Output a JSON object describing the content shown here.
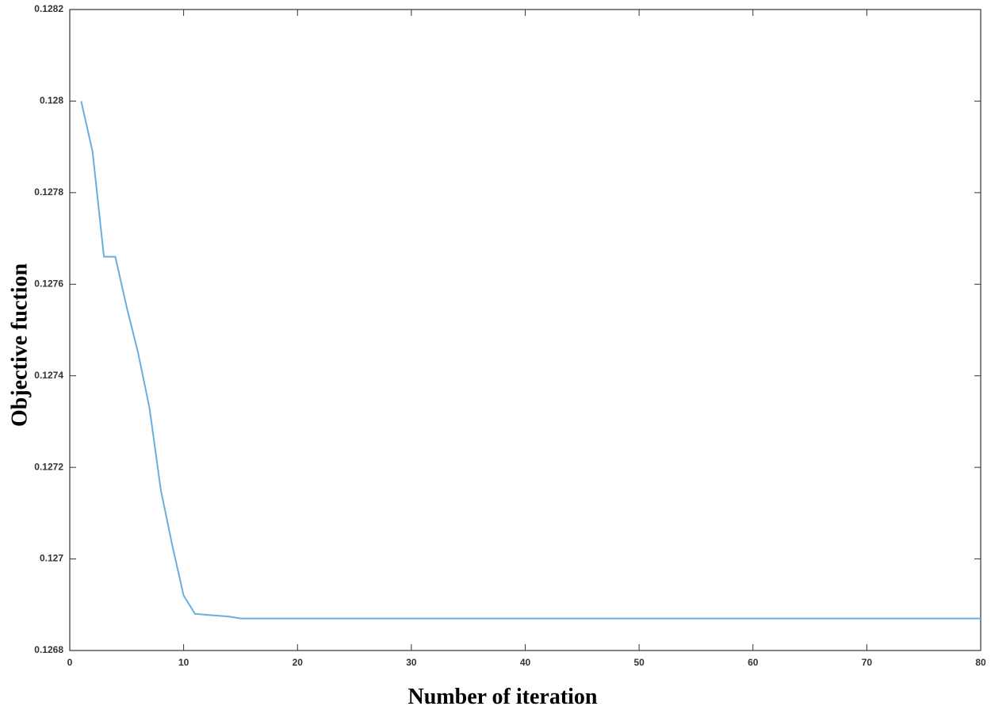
{
  "chart_data": {
    "type": "line",
    "xlabel": "Number of iteration",
    "ylabel": "Objective fuction",
    "x": [
      1,
      2,
      3,
      4,
      5,
      6,
      7,
      8,
      9,
      10,
      11,
      12,
      13,
      14,
      15,
      16,
      17,
      18,
      19,
      20,
      21,
      22,
      23,
      24,
      25,
      26,
      27,
      28,
      29,
      30,
      31,
      32,
      33,
      34,
      35,
      36,
      37,
      38,
      39,
      40,
      41,
      42,
      43,
      44,
      45,
      46,
      47,
      48,
      49,
      50,
      51,
      52,
      53,
      54,
      55,
      56,
      57,
      58,
      59,
      60,
      61,
      62,
      63,
      64,
      65,
      66,
      67,
      68,
      69,
      70,
      71,
      72,
      73,
      74,
      75,
      76,
      77,
      78,
      79,
      80
    ],
    "values": [
      0.128,
      0.12789,
      0.12766,
      0.12766,
      0.12755,
      0.12745,
      0.12733,
      0.12715,
      0.12703,
      0.12692,
      0.12688,
      0.126878,
      0.126876,
      0.126874,
      0.12687,
      0.12687,
      0.12687,
      0.12687,
      0.12687,
      0.12687,
      0.12687,
      0.12687,
      0.12687,
      0.12687,
      0.12687,
      0.12687,
      0.12687,
      0.12687,
      0.12687,
      0.12687,
      0.12687,
      0.12687,
      0.12687,
      0.12687,
      0.12687,
      0.12687,
      0.12687,
      0.12687,
      0.12687,
      0.12687,
      0.12687,
      0.12687,
      0.12687,
      0.12687,
      0.12687,
      0.12687,
      0.12687,
      0.12687,
      0.12687,
      0.12687,
      0.12687,
      0.12687,
      0.12687,
      0.12687,
      0.12687,
      0.12687,
      0.12687,
      0.12687,
      0.12687,
      0.12687,
      0.12687,
      0.12687,
      0.12687,
      0.12687,
      0.12687,
      0.12687,
      0.12687,
      0.12687,
      0.12687,
      0.12687,
      0.12687,
      0.12687,
      0.12687,
      0.12687,
      0.12687,
      0.12687,
      0.12687,
      0.12687,
      0.12687,
      0.12687
    ],
    "color": "#6aaee0",
    "xlim": [
      0,
      80
    ],
    "xticks": [
      0,
      10,
      20,
      30,
      40,
      50,
      60,
      70,
      80
    ],
    "ylim": [
      0.1268,
      0.1282
    ],
    "yticks": [
      0.1268,
      0.127,
      0.1272,
      0.1274,
      0.1276,
      0.1278,
      0.128,
      0.1282
    ],
    "grid": false
  }
}
